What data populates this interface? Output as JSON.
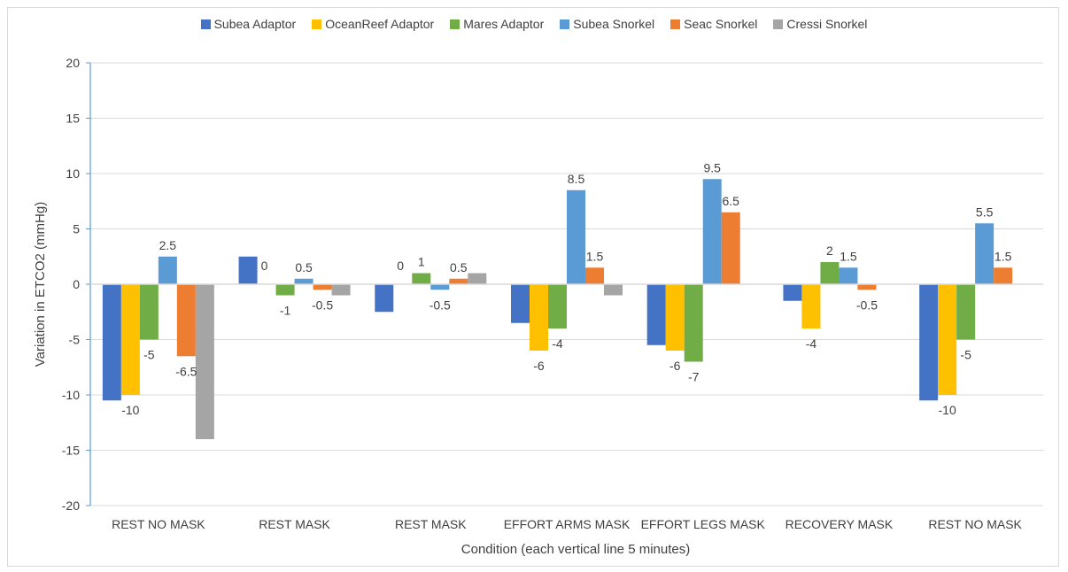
{
  "chart_data": {
    "type": "bar",
    "title": "",
    "xlabel": "Condition (each vertical line 5 minutes)",
    "ylabel": "Variation in ETCO2 (mmHg)",
    "ylim": [
      -20,
      20
    ],
    "yticks": [
      20,
      15,
      10,
      5,
      0,
      -5,
      -10,
      -15,
      -20
    ],
    "grid": true,
    "legend_position": "top",
    "categories": [
      "REST NO MASK",
      "REST MASK",
      "REST MASK",
      "EFFORT ARMS MASK",
      "EFFORT LEGS MASK",
      "RECOVERY MASK",
      "REST NO MASK"
    ],
    "series": [
      {
        "name": "Subea Adaptor",
        "color": "#4472C4",
        "values": [
          -10.5,
          2.5,
          -2.5,
          -3.5,
          -5.5,
          -1.5,
          -10.5
        ]
      },
      {
        "name": "OceanReef Adaptor",
        "color": "#FFC000",
        "values": [
          -10,
          0,
          0,
          -6,
          -6,
          -4,
          -10
        ]
      },
      {
        "name": "Mares Adaptor",
        "color": "#70AD47",
        "values": [
          -5,
          -1,
          1,
          -4,
          -7,
          2,
          -5
        ]
      },
      {
        "name": "Subea Snorkel",
        "color": "#5B9BD5",
        "values": [
          2.5,
          0.5,
          -0.5,
          8.5,
          9.5,
          1.5,
          5.5
        ]
      },
      {
        "name": "Seac Snorkel",
        "color": "#ED7D31",
        "values": [
          -6.5,
          -0.5,
          0.5,
          1.5,
          6.5,
          -0.5,
          1.5
        ]
      },
      {
        "name": "Cressi Snorkel",
        "color": "#A5A5A5",
        "values": [
          -14,
          -1,
          1,
          -1,
          null,
          null,
          null
        ]
      }
    ],
    "data_labels": [
      {
        "text": "-10",
        "category": 0,
        "series": 1
      },
      {
        "text": "-5",
        "category": 0,
        "series": 2
      },
      {
        "text": "2.5",
        "category": 0,
        "series": 3
      },
      {
        "text": "-6.5",
        "category": 0,
        "series": 4
      },
      {
        "text": "0",
        "category": 1,
        "series": 1
      },
      {
        "text": "-1",
        "category": 1,
        "series": 2
      },
      {
        "text": "0.5",
        "category": 1,
        "series": 3
      },
      {
        "text": "-0.5",
        "category": 1,
        "series": 4
      },
      {
        "text": "0",
        "category": 2,
        "series": 1
      },
      {
        "text": "1",
        "category": 2,
        "series": 2
      },
      {
        "text": "-0.5",
        "category": 2,
        "series": 3
      },
      {
        "text": "0.5",
        "category": 2,
        "series": 4
      },
      {
        "text": "-6",
        "category": 3,
        "series": 1
      },
      {
        "text": "-4",
        "category": 3,
        "series": 2
      },
      {
        "text": "8.5",
        "category": 3,
        "series": 3
      },
      {
        "text": "1.5",
        "category": 3,
        "series": 4
      },
      {
        "text": "-6",
        "category": 4,
        "series": 1
      },
      {
        "text": "-7",
        "category": 4,
        "series": 2
      },
      {
        "text": "9.5",
        "category": 4,
        "series": 3
      },
      {
        "text": "6.5",
        "category": 4,
        "series": 4
      },
      {
        "text": "-4",
        "category": 5,
        "series": 1
      },
      {
        "text": "2",
        "category": 5,
        "series": 2
      },
      {
        "text": "1.5",
        "category": 5,
        "series": 3
      },
      {
        "text": "-0.5",
        "category": 5,
        "series": 4
      },
      {
        "text": "-10",
        "category": 6,
        "series": 1
      },
      {
        "text": "-5",
        "category": 6,
        "series": 2
      },
      {
        "text": "5.5",
        "category": 6,
        "series": 3
      },
      {
        "text": "1.5",
        "category": 6,
        "series": 4
      }
    ],
    "colors": {
      "gridline": "#d9d9d9",
      "axis": "#5B9BD5",
      "text": "#404040"
    }
  }
}
